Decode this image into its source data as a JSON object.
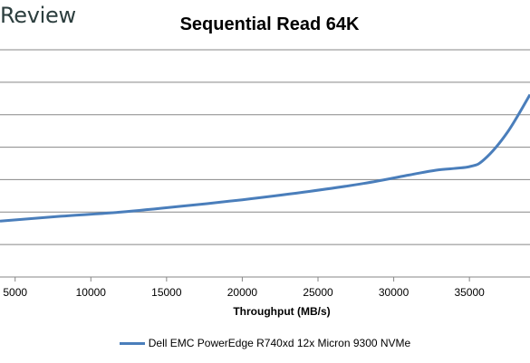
{
  "brand": "Review",
  "colors": {
    "series": "#4a7ebb",
    "grid": "#878787",
    "axis": "#878787",
    "text": "#000000"
  },
  "chart_data": {
    "type": "line",
    "title": "Sequential Read 64K",
    "xlabel": "Throughput (MB/s)",
    "ylabel": "",
    "xlim": [
      4000,
      39000
    ],
    "xticks": [
      5000,
      10000,
      15000,
      20000,
      25000,
      30000,
      35000
    ],
    "ylim": [
      0,
      7
    ],
    "yticks": [
      0,
      1,
      2,
      3,
      4,
      5,
      6,
      7
    ],
    "grid": true,
    "legend_position": "bottom",
    "series": [
      {
        "name": "Dell EMC PowerEdge R740xd 12x Micron 9300 NVMe",
        "x": [
          4000,
          8000,
          12000,
          16000,
          20000,
          24000,
          28000,
          31000,
          32800,
          35000,
          36000,
          37500,
          39000
        ],
        "y": [
          1.72,
          1.87,
          2.0,
          2.18,
          2.38,
          2.61,
          2.88,
          3.14,
          3.29,
          3.4,
          3.63,
          4.45,
          5.62
        ]
      }
    ]
  }
}
